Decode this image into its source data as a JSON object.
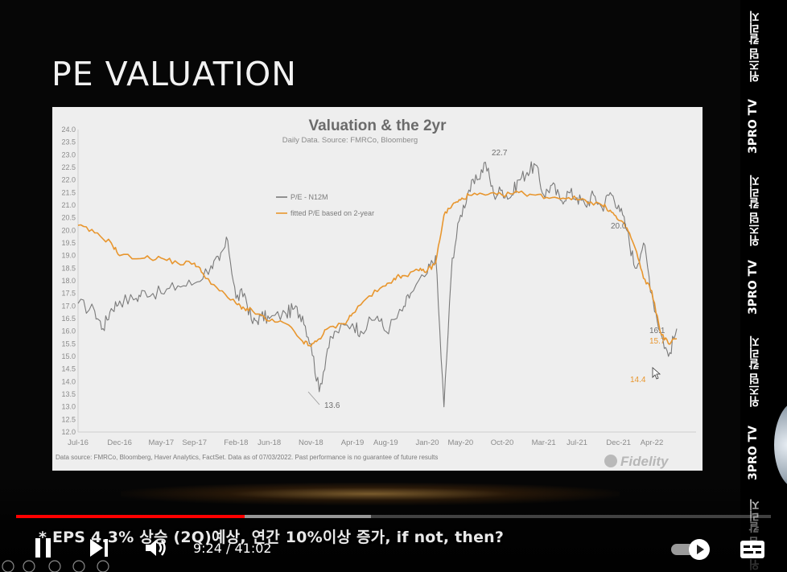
{
  "slide": {
    "title": "PE VALUATION"
  },
  "chart_data": {
    "type": "line",
    "title": "Valuation & the 2yr",
    "subtitle": "Daily Data. Source: FMRCo, Bloomberg",
    "footnote": "Data source: FMRCo, Bloomberg, Haver Analytics, FactSet. Data as of 07/03/2022. Past performance is no guarantee of future results",
    "brand": "Fidelity",
    "y_ticks": [
      "24.0",
      "23.5",
      "23.0",
      "22.5",
      "22.0",
      "21.5",
      "21.0",
      "20.5",
      "20.0",
      "19.5",
      "19.0",
      "18.5",
      "18.0",
      "17.5",
      "17.0",
      "16.5",
      "16.0",
      "15.5",
      "15.0",
      "14.5",
      "14.0",
      "13.5",
      "13.0",
      "12.5",
      "12.0"
    ],
    "x_ticks": [
      "Jul-16",
      "Dec-16",
      "May-17",
      "Sep-17",
      "Feb-18",
      "Jun-18",
      "Nov-18",
      "Apr-19",
      "Aug-19",
      "Jan-20",
      "May-20",
      "Oct-20",
      "Mar-21",
      "Jul-21",
      "Dec-21",
      "Apr-22"
    ],
    "ylim": [
      12.0,
      24.0
    ],
    "grid": false,
    "legend_position": "upper-left",
    "annotations": [
      "22.7",
      "20.0",
      "13.6",
      "16.1",
      "15.7",
      "14.4"
    ],
    "series": [
      {
        "name": "P/E - N12M",
        "color": "#7a7a7a",
        "points": [
          [
            "Jul-16",
            17.1
          ],
          [
            "Sep-16",
            16.8
          ],
          [
            "Oct-16",
            16.1
          ],
          [
            "Nov-16",
            16.9
          ],
          [
            "Dec-16",
            17.2
          ],
          [
            "Feb-17",
            17.3
          ],
          [
            "Mar-17",
            17.6
          ],
          [
            "May-17",
            17.5
          ],
          [
            "Jul-17",
            17.8
          ],
          [
            "Sep-17",
            17.9
          ],
          [
            "Nov-17",
            18.6
          ],
          [
            "Dec-17",
            18.8
          ],
          [
            "Jan-18",
            19.6
          ],
          [
            "Feb-18",
            17.3
          ],
          [
            "Mar-18",
            17.5
          ],
          [
            "Apr-18",
            16.3
          ],
          [
            "May-18",
            16.6
          ],
          [
            "Jun-18",
            16.5
          ],
          [
            "Aug-18",
            16.7
          ],
          [
            "Sep-18",
            16.9
          ],
          [
            "Oct-18",
            16.6
          ],
          [
            "Nov-18",
            15.5
          ],
          [
            "Dec-18",
            13.6
          ],
          [
            "Jan-19",
            15.3
          ],
          [
            "Feb-19",
            16.0
          ],
          [
            "Apr-19",
            16.3
          ],
          [
            "May-19",
            16.0
          ],
          [
            "Jul-19",
            16.6
          ],
          [
            "Aug-19",
            16.0
          ],
          [
            "Oct-19",
            16.8
          ],
          [
            "Nov-19",
            17.5
          ],
          [
            "Jan-20",
            18.3
          ],
          [
            "Feb-20",
            19.0
          ],
          [
            "Mar-20",
            13.0
          ],
          [
            "Apr-20",
            18.9
          ],
          [
            "May-20",
            20.6
          ],
          [
            "Jun-20",
            21.6
          ],
          [
            "Jul-20",
            22.0
          ],
          [
            "Aug-20",
            22.7
          ],
          [
            "Sep-20",
            21.4
          ],
          [
            "Oct-20",
            21.6
          ],
          [
            "Nov-20",
            21.3
          ],
          [
            "Dec-20",
            22.0
          ],
          [
            "Jan-21",
            22.3
          ],
          [
            "Feb-21",
            22.6
          ],
          [
            "Mar-21",
            21.4
          ],
          [
            "Apr-21",
            21.8
          ],
          [
            "May-21",
            21.2
          ],
          [
            "Jun-21",
            21.5
          ],
          [
            "Jul-21",
            21.3
          ],
          [
            "Aug-21",
            21.0
          ],
          [
            "Sep-21",
            21.4
          ],
          [
            "Oct-21",
            20.9
          ],
          [
            "Nov-21",
            21.5
          ],
          [
            "Dec-21",
            21.0
          ],
          [
            "Jan-22",
            20.0
          ],
          [
            "Feb-22",
            18.5
          ],
          [
            "Mar-22",
            19.5
          ],
          [
            "Apr-22",
            17.5
          ],
          [
            "May-22",
            16.0
          ],
          [
            "Jun-22",
            15.0
          ],
          [
            "Jul-22",
            16.1
          ]
        ]
      },
      {
        "name": "fitted P/E based on 2-year",
        "color": "#e8962e",
        "points": [
          [
            "Jul-16",
            20.2
          ],
          [
            "Sep-16",
            19.9
          ],
          [
            "Nov-16",
            19.5
          ],
          [
            "Dec-16",
            19.0
          ],
          [
            "Mar-17",
            18.9
          ],
          [
            "May-17",
            18.9
          ],
          [
            "Jul-17",
            18.7
          ],
          [
            "Sep-17",
            18.7
          ],
          [
            "Oct-17",
            18.3
          ],
          [
            "Dec-17",
            17.6
          ],
          [
            "Feb-18",
            17.1
          ],
          [
            "Mar-18",
            16.9
          ],
          [
            "Apr-18",
            16.8
          ],
          [
            "Jun-18",
            16.4
          ],
          [
            "Aug-18",
            16.3
          ],
          [
            "Oct-18",
            15.6
          ],
          [
            "Nov-18",
            15.4
          ],
          [
            "Dec-18",
            15.7
          ],
          [
            "Jan-19",
            16.1
          ],
          [
            "Mar-19",
            16.3
          ],
          [
            "Apr-19",
            16.7
          ],
          [
            "Jun-19",
            17.4
          ],
          [
            "Aug-19",
            17.8
          ],
          [
            "Sep-19",
            18.1
          ],
          [
            "Oct-19",
            18.2
          ],
          [
            "Dec-19",
            18.4
          ],
          [
            "Jan-20",
            18.4
          ],
          [
            "Feb-20",
            18.7
          ],
          [
            "Mar-20",
            20.6
          ],
          [
            "Apr-20",
            21.0
          ],
          [
            "May-20",
            21.2
          ],
          [
            "Jun-20",
            21.4
          ],
          [
            "Aug-20",
            21.4
          ],
          [
            "Oct-20",
            21.4
          ],
          [
            "Dec-20",
            21.5
          ],
          [
            "Feb-21",
            21.4
          ],
          [
            "Apr-21",
            21.3
          ],
          [
            "Jun-21",
            21.3
          ],
          [
            "Aug-21",
            21.2
          ],
          [
            "Oct-21",
            21.0
          ],
          [
            "Nov-21",
            20.8
          ],
          [
            "Dec-21",
            20.4
          ],
          [
            "Jan-22",
            20.1
          ],
          [
            "Feb-22",
            19.3
          ],
          [
            "Mar-22",
            18.1
          ],
          [
            "Apr-22",
            17.6
          ],
          [
            "May-22",
            16.0
          ],
          [
            "Jun-22",
            15.5
          ],
          [
            "Jul-22",
            15.7
          ]
        ]
      }
    ],
    "extra_low": {
      "label": "14.4",
      "value": 14.4
    }
  },
  "player": {
    "caption": "* EPS 4.3% 상승 (2Q)예상, 연간 10%이상 증가, if not, then?",
    "current_time": "9:24",
    "duration": "41:02",
    "time_separator": " / ",
    "progress": 0.303,
    "buffered": 0.47,
    "icons": {
      "play_pause": "pause-icon",
      "next": "next-icon",
      "volume": "volume-icon",
      "autoplay": "autoplay-toggle",
      "settings": "settings-icon"
    }
  },
  "watermark": {
    "items": [
      "위즈덤 칼리지",
      "3PRO TV",
      "위즈덤 칼리지",
      "3PRO TV",
      "위즈덤 칼리지",
      "3PRO TV",
      "위즈덤 칼리지"
    ]
  }
}
